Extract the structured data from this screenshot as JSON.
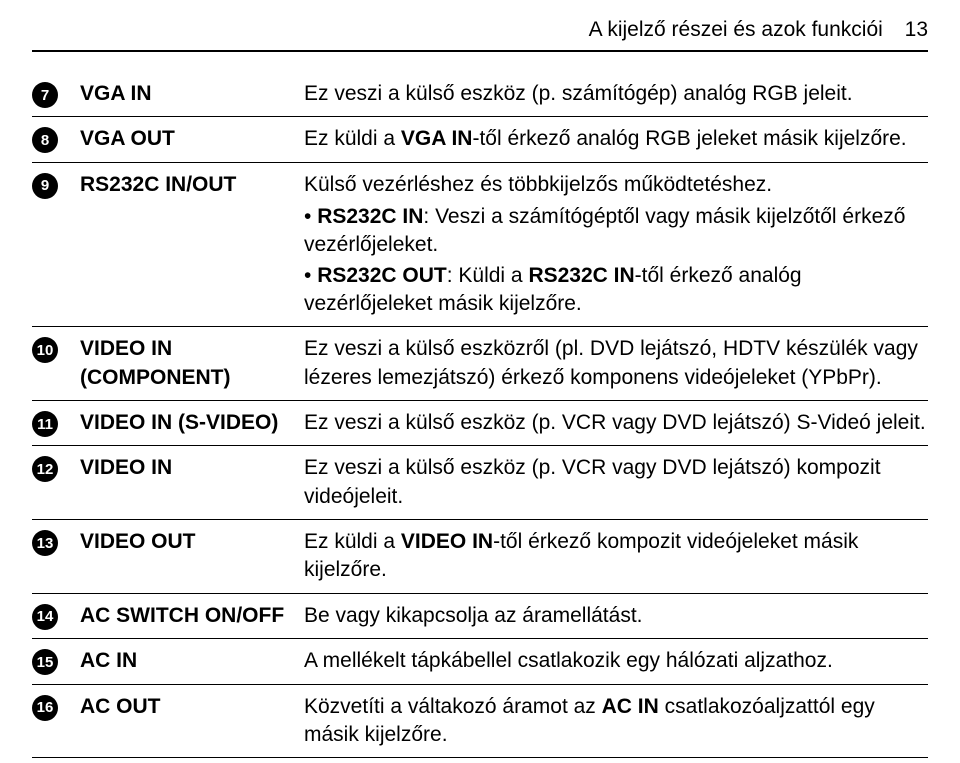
{
  "header": {
    "title": "A kijelző részei és azok funkciói",
    "page_number": "13"
  },
  "rows": [
    {
      "num": "7",
      "label": "VGA IN",
      "desc_html": "Ez veszi a külső eszköz (p. számítógép) analóg RGB jeleit."
    },
    {
      "num": "8",
      "label": "VGA OUT",
      "desc_html": "Ez küldi a <b>VGA IN</b>-től érkező analóg RGB jeleket másik kijelzőre."
    },
    {
      "num": "9",
      "label": "RS232C IN/OUT",
      "desc_html": "Külső vezérléshez és többkijelzős működtetéshez.",
      "bullets": [
        "• <b>RS232C IN</b>: Veszi a számítógéptől vagy másik kijelzőtől érkező vezérlőjeleket.",
        "• <b>RS232C OUT</b>: Küldi a <b>RS232C IN</b>-től érkező analóg vezérlőjeleket másik kijelzőre."
      ]
    },
    {
      "num": "10",
      "label": "VIDEO IN (COMPONENT)",
      "desc_html": "Ez veszi a külső eszközről (pl. DVD lejátszó, HDTV készülék vagy lézeres lemezjátszó) érkező komponens videójeleket (YPbPr)."
    },
    {
      "num": "11",
      "label": "VIDEO IN (S-VIDEO)",
      "desc_html": "Ez veszi a külső eszköz (p. VCR vagy DVD lejátszó) S-Videó jeleit."
    },
    {
      "num": "12",
      "label": "VIDEO IN",
      "desc_html": "Ez veszi a külső eszköz (p. VCR vagy DVD lejátszó) kompozit videójeleit."
    },
    {
      "num": "13",
      "label": "VIDEO OUT",
      "desc_html": "Ez küldi a <b>VIDEO IN</b>-től érkező kompozit videójeleket másik kijelzőre."
    },
    {
      "num": "14",
      "label": "AC SWITCH ON/OFF",
      "desc_html": "Be vagy kikapcsolja az áramellátást."
    },
    {
      "num": "15",
      "label": "AC IN",
      "desc_html": "A mellékelt tápkábellel csatlakozik egy hálózati aljzathoz."
    },
    {
      "num": "16",
      "label": "AC OUT",
      "desc_html": "Közvetíti a váltakozó áramot az <b>AC IN</b> csatlakozóaljzattól egy másik kijelzőre."
    }
  ]
}
